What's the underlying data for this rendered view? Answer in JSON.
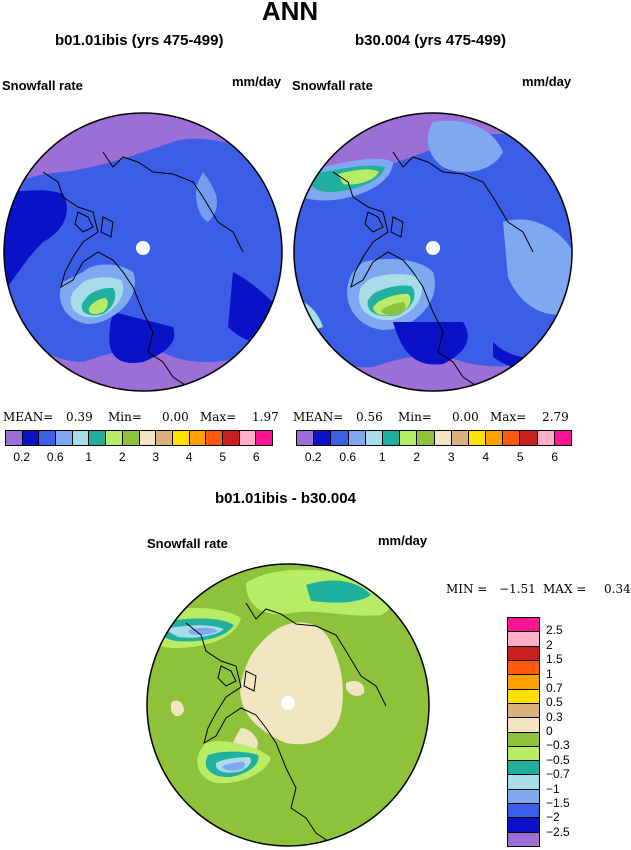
{
  "page": {
    "title": "ANN"
  },
  "panels": [
    {
      "subtitle": "b01.01ibis (yrs 475-499)",
      "field": "Snowfall rate",
      "units": "mm/day",
      "stats": {
        "mean_label": "MEAN=",
        "mean": "0.39",
        "min_label": "Min=",
        "min": "0.00",
        "max_label": "Max=",
        "max": "1.97"
      }
    },
    {
      "subtitle": "b30.004 (yrs 475-499)",
      "field": "Snowfall rate",
      "units": "mm/day",
      "stats": {
        "mean_label": "MEAN=",
        "mean": "0.56",
        "min_label": "Min=",
        "min": "0.00",
        "max_label": "Max=",
        "max": "2.79"
      }
    }
  ],
  "diff": {
    "subtitle": "b01.01ibis - b30.004",
    "field": "Snowfall rate",
    "units": "mm/day",
    "stats": {
      "min_label": "MIN =",
      "min": "−1.51",
      "max_label": "MAX =",
      "max": "0.34"
    }
  },
  "colorbar": {
    "colors": [
      "#9b6fd6",
      "#0a12c8",
      "#3c5ee6",
      "#7ea8f0",
      "#a8dce8",
      "#22b09e",
      "#b8ec66",
      "#8ec23a",
      "#f2e6c2",
      "#d9b07e",
      "#ffe000",
      "#ffa000",
      "#ff5a10",
      "#c62020",
      "#ffb0c8",
      "#ff1493"
    ],
    "labels": [
      "0.2",
      "0.6",
      "1",
      "2",
      "3",
      "4",
      "5",
      "6"
    ]
  },
  "diff_colorbar": {
    "colors": [
      "#ff1493",
      "#ffb0c8",
      "#c62020",
      "#ff5a10",
      "#ffa000",
      "#ffe000",
      "#d9b07e",
      "#f2e6c2",
      "#8ec23a",
      "#b8ec66",
      "#22b09e",
      "#a8dce8",
      "#7ea8f0",
      "#3c5ee6",
      "#0a12c8",
      "#9b6fd6"
    ],
    "labels": [
      "2.5",
      "2",
      "1.5",
      "1",
      "0.7",
      "0.5",
      "0.3",
      "0",
      "−0.3",
      "−0.5",
      "−0.7",
      "−1",
      "−1.5",
      "−2",
      "−2.5"
    ]
  }
}
